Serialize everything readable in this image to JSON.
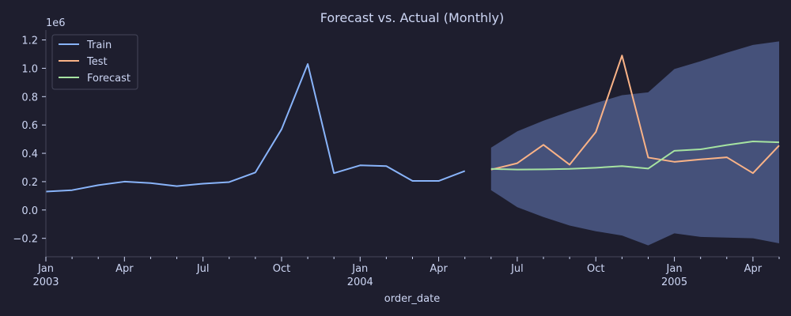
{
  "chart_data": {
    "type": "line",
    "title": "Forecast vs. Actual (Monthly)",
    "xlabel": "order_date",
    "ylabel": "",
    "y_scale_label": "1e6",
    "xlim": [
      "2003-01",
      "2005-05"
    ],
    "ylim": [
      -0.33,
      1.27
    ],
    "grid": false,
    "legend_position": "top-left",
    "y_ticks": [
      {
        "value": -0.2,
        "label": "−0.2"
      },
      {
        "value": 0.0,
        "label": "0.0"
      },
      {
        "value": 0.2,
        "label": "0.2"
      },
      {
        "value": 0.4,
        "label": "0.4"
      },
      {
        "value": 0.6,
        "label": "0.6"
      },
      {
        "value": 0.8,
        "label": "0.8"
      },
      {
        "value": 1.0,
        "label": "1.0"
      },
      {
        "value": 1.2,
        "label": "1.2"
      }
    ],
    "x_ticks_major": [
      {
        "x": "2003-01",
        "line1": "Jan",
        "line2": "2003"
      },
      {
        "x": "2003-04",
        "line1": "Apr",
        "line2": ""
      },
      {
        "x": "2003-07",
        "line1": "Jul",
        "line2": ""
      },
      {
        "x": "2003-10",
        "line1": "Oct",
        "line2": ""
      },
      {
        "x": "2004-01",
        "line1": "Jan",
        "line2": "2004"
      },
      {
        "x": "2004-04",
        "line1": "Apr",
        "line2": ""
      },
      {
        "x": "2004-07",
        "line1": "Jul",
        "line2": ""
      },
      {
        "x": "2004-10",
        "line1": "Oct",
        "line2": ""
      },
      {
        "x": "2005-01",
        "line1": "Jan",
        "line2": "2005"
      },
      {
        "x": "2005-04",
        "line1": "Apr",
        "line2": ""
      }
    ],
    "x_ticks_minor": [
      "2003-02",
      "2003-03",
      "2003-05",
      "2003-06",
      "2003-08",
      "2003-09",
      "2003-11",
      "2003-12",
      "2004-02",
      "2004-03",
      "2004-05",
      "2004-06",
      "2004-08",
      "2004-09",
      "2004-11",
      "2004-12",
      "2005-02",
      "2005-03",
      "2005-05"
    ],
    "series": [
      {
        "name": "Train",
        "color": "#89b4fa",
        "x": [
          "2003-01",
          "2003-02",
          "2003-03",
          "2003-04",
          "2003-05",
          "2003-06",
          "2003-07",
          "2003-08",
          "2003-09",
          "2003-10",
          "2003-11",
          "2003-12",
          "2004-01",
          "2004-02",
          "2004-03",
          "2004-04",
          "2004-05"
        ],
        "values": [
          0.13,
          0.14,
          0.175,
          0.2,
          0.19,
          0.168,
          0.186,
          0.197,
          0.265,
          0.57,
          1.03,
          0.26,
          0.315,
          0.31,
          0.205,
          0.205,
          0.275
        ]
      },
      {
        "name": "Test",
        "color": "#fab387",
        "x": [
          "2004-06",
          "2004-07",
          "2004-08",
          "2004-09",
          "2004-10",
          "2004-11",
          "2004-12",
          "2005-01",
          "2005-02",
          "2005-03",
          "2005-04",
          "2005-05"
        ],
        "values": [
          0.285,
          0.33,
          0.46,
          0.32,
          0.55,
          1.09,
          0.37,
          0.34,
          0.357,
          0.372,
          0.26,
          0.455
        ]
      },
      {
        "name": "Forecast",
        "color": "#a6e3a1",
        "x": [
          "2004-06",
          "2004-07",
          "2004-08",
          "2004-09",
          "2004-10",
          "2004-11",
          "2004-12",
          "2005-01",
          "2005-02",
          "2005-03",
          "2005-04",
          "2005-05"
        ],
        "values": [
          0.29,
          0.285,
          0.287,
          0.29,
          0.298,
          0.31,
          0.292,
          0.418,
          0.428,
          0.458,
          0.484,
          0.478
        ]
      }
    ],
    "confidence_band": {
      "color": "#45517a",
      "x": [
        "2004-06",
        "2004-07",
        "2004-08",
        "2004-09",
        "2004-10",
        "2004-11",
        "2004-12",
        "2005-01",
        "2005-02",
        "2005-03",
        "2005-04",
        "2005-05"
      ],
      "lower": [
        0.14,
        0.02,
        -0.05,
        -0.11,
        -0.15,
        -0.18,
        -0.25,
        -0.165,
        -0.19,
        -0.195,
        -0.2,
        -0.235
      ],
      "upper": [
        0.44,
        0.555,
        0.63,
        0.695,
        0.755,
        0.81,
        0.83,
        0.995,
        1.05,
        1.11,
        1.165,
        1.19
      ]
    }
  },
  "colors": {
    "background": "#1e1e2e",
    "axis": "#45475a",
    "text": "#cdd6f4",
    "legend_background": "#1e1e2e",
    "legend_border": "#45475a"
  }
}
